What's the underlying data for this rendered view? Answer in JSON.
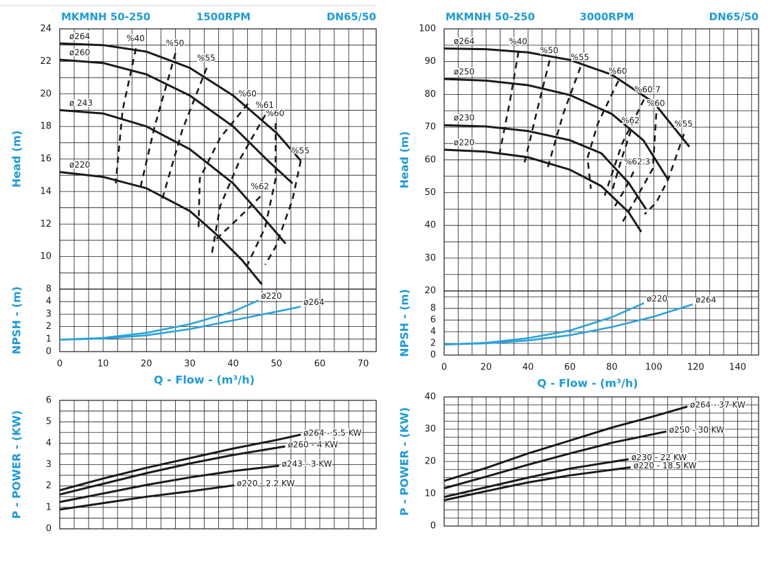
{
  "chart_data": [
    {
      "type": "line",
      "header": [
        "MKMNH 50-250",
        "1500RPM",
        "DN65/50"
      ],
      "ylabel": "Head (m)",
      "xlim": [
        0,
        73
      ],
      "ylim": [
        8,
        24
      ],
      "yticks": [
        8,
        10,
        12,
        14,
        16,
        18,
        20,
        22,
        24
      ],
      "grid": true,
      "minor_grid": [
        3,
        2
      ],
      "series": [
        {
          "name": "ø264",
          "color": "#1a1a1a",
          "x": [
            0,
            10,
            20,
            30,
            40,
            50,
            55.6
          ],
          "values": [
            23.1,
            23.0,
            22.6,
            21.6,
            19.9,
            17.6,
            15.9
          ]
        },
        {
          "name": "ø260",
          "color": "#1a1a1a",
          "x": [
            0,
            10,
            20,
            30,
            40,
            48,
            53.7
          ],
          "values": [
            22.1,
            21.9,
            21.2,
            19.9,
            18.0,
            15.9,
            14.5
          ]
        },
        {
          "name": "ø 243",
          "color": "#1a1a1a",
          "x": [
            0,
            10,
            20,
            30,
            40,
            46,
            52.1
          ],
          "values": [
            19.0,
            18.8,
            18.0,
            16.6,
            14.5,
            12.7,
            10.8
          ]
        },
        {
          "name": "ø220",
          "color": "#1a1a1a",
          "x": [
            0,
            10,
            20,
            30,
            36,
            42,
            46.6
          ],
          "values": [
            15.2,
            14.9,
            14.2,
            12.8,
            11.4,
            9.8,
            8.3
          ]
        },
        {
          "name": "%40",
          "color": "#1a1a1a",
          "dash": true,
          "x": [
            17.6,
            14.5,
            12.9
          ],
          "values": [
            22.8,
            19.0,
            14.5
          ]
        },
        {
          "name": "%50",
          "color": "#1a1a1a",
          "dash": true,
          "x": [
            26.7,
            21.9,
            18.4
          ],
          "values": [
            22.5,
            18.0,
            14.0
          ]
        },
        {
          "name": "%55",
          "color": "#1a1a1a",
          "dash": true,
          "x": [
            33.9,
            28.3,
            23.5
          ],
          "values": [
            21.6,
            17.8,
            13.4
          ]
        },
        {
          "name": "%60",
          "color": "#1a1a1a",
          "dash": true,
          "x": [
            43.4,
            37.0,
            32.3,
            32.0
          ],
          "values": [
            19.4,
            17.3,
            14.8,
            11.6
          ]
        },
        {
          "name": "%61",
          "color": "#1a1a1a",
          "dash": true,
          "x": [
            47.4,
            41.8,
            37.0,
            35.1
          ],
          "values": [
            18.7,
            16.1,
            13.1,
            10.2
          ]
        },
        {
          "name": "%60",
          "color": "#1a1a1a",
          "dash": true,
          "x": [
            49.8,
            49.8,
            47.4,
            42.6
          ],
          "values": [
            18.2,
            14.8,
            11.8,
            9.1
          ]
        },
        {
          "name": "%55",
          "color": "#1a1a1a",
          "dash": true,
          "x": [
            55.6,
            53.7,
            49.8,
            47.4
          ],
          "values": [
            15.9,
            13.5,
            10.6,
            9.5
          ]
        },
        {
          "name": "%62",
          "color": "#1a1a1a",
          "dash": true,
          "x": [
            46.3,
            41.0,
            35.8
          ],
          "values": [
            13.7,
            12.3,
            11.0
          ]
        }
      ]
    },
    {
      "type": "line",
      "ylabel": "NPSH - (m)",
      "xlabel": "Q - Flow - (m³/h)",
      "xlim": [
        0,
        73
      ],
      "xticks": [
        0,
        10,
        20,
        30,
        40,
        50,
        60,
        70
      ],
      "ylim": [
        0,
        5
      ],
      "yticks": [
        0,
        1,
        2,
        3,
        4
      ],
      "grid": true,
      "minor_grid": [
        3,
        1
      ],
      "series": [
        {
          "name": "ø220",
          "color": "#29a3dc",
          "x": [
            0,
            10,
            20,
            30,
            40,
            45.8
          ],
          "values": [
            0.95,
            1.1,
            1.5,
            2.2,
            3.2,
            4.1
          ]
        },
        {
          "name": "ø264",
          "color": "#29a3dc",
          "x": [
            0,
            10,
            20,
            30,
            40,
            50,
            55.6
          ],
          "values": [
            0.95,
            1.05,
            1.3,
            1.8,
            2.5,
            3.2,
            3.6
          ]
        }
      ]
    },
    {
      "type": "line",
      "ylabel": "P - POWER - (KW)",
      "xlim": [
        0,
        73
      ],
      "ylim": [
        0,
        6
      ],
      "yticks": [
        0,
        1,
        2,
        3,
        4,
        5,
        6
      ],
      "grid": true,
      "minor_grid": [
        3,
        2
      ],
      "series": [
        {
          "name": "ø264 - 5.5 KW",
          "color": "#1a1a1a",
          "x": [
            0,
            10,
            20,
            30,
            40,
            50,
            55.6
          ],
          "values": [
            1.8,
            2.35,
            2.85,
            3.3,
            3.75,
            4.15,
            4.4
          ]
        },
        {
          "name": "ø260 - 4 KW",
          "color": "#1a1a1a",
          "x": [
            0,
            10,
            20,
            30,
            40,
            52
          ],
          "values": [
            1.6,
            2.1,
            2.6,
            3.05,
            3.45,
            3.85
          ]
        },
        {
          "name": "ø243 - 3 KW",
          "color": "#1a1a1a",
          "x": [
            0,
            10,
            20,
            30,
            40,
            50.6
          ],
          "values": [
            1.25,
            1.65,
            2.05,
            2.4,
            2.7,
            2.95
          ]
        },
        {
          "name": "ø220 - 2.2 KW",
          "color": "#1a1a1a",
          "x": [
            0,
            10,
            20,
            30,
            40.2
          ],
          "values": [
            0.9,
            1.2,
            1.5,
            1.75,
            2.03
          ]
        }
      ]
    },
    {
      "type": "line",
      "header": [
        "MKMNH 50-250",
        "3000RPM",
        "DN65/50"
      ],
      "ylabel": "Head (m)",
      "xlim": [
        0,
        150
      ],
      "ylim": [
        20,
        100
      ],
      "yticks": [
        20,
        30,
        40,
        50,
        60,
        70,
        80,
        90,
        100
      ],
      "grid": true,
      "minor_grid": [
        3,
        2
      ],
      "series": [
        {
          "name": "ø264",
          "color": "#1a1a1a",
          "x": [
            0,
            20,
            40,
            60,
            80,
            100,
            117
          ],
          "values": [
            94,
            93.8,
            92.8,
            90.5,
            86,
            77.5,
            64
          ]
        },
        {
          "name": "ø250",
          "color": "#1a1a1a",
          "x": [
            0,
            20,
            40,
            60,
            80,
            95,
            106.8
          ],
          "values": [
            84.7,
            84.2,
            82.8,
            79.8,
            74,
            66,
            54
          ]
        },
        {
          "name": "ø230",
          "color": "#1a1a1a",
          "x": [
            0,
            20,
            40,
            60,
            75,
            88,
            96.3
          ],
          "values": [
            70.6,
            70.2,
            68.8,
            66,
            62,
            53,
            45
          ]
        },
        {
          "name": "ø220",
          "color": "#1a1a1a",
          "x": [
            0,
            20,
            40,
            60,
            75,
            88,
            94
          ],
          "values": [
            63.1,
            62.5,
            60.8,
            57,
            52,
            44,
            38
          ]
        },
        {
          "name": "%40",
          "color": "#1a1a1a",
          "dash": true,
          "x": [
            35.5,
            31.2,
            26.3
          ],
          "values": [
            93.1,
            77.4,
            61.6
          ]
        },
        {
          "name": "%50",
          "color": "#1a1a1a",
          "dash": true,
          "x": [
            50.3,
            44.4,
            38.1
          ],
          "values": [
            90.4,
            75.3,
            58.5
          ]
        },
        {
          "name": "%55",
          "color": "#1a1a1a",
          "dash": true,
          "x": [
            65,
            56.9,
            49.3
          ],
          "values": [
            88.3,
            74.2,
            57.4
          ]
        },
        {
          "name": "%60",
          "color": "#1a1a1a",
          "dash": true,
          "x": [
            83.1,
            73.3,
            68.4,
            70
          ],
          "values": [
            84.1,
            71.1,
            60.6,
            51.2
          ]
        },
        {
          "name": "%60.7",
          "color": "#1a1a1a",
          "dash": true,
          "x": [
            95.3,
            84.8,
            76.6
          ],
          "values": [
            78.4,
            64.8,
            49.1
          ]
        },
        {
          "name": "%60",
          "color": "#1a1a1a",
          "dash": true,
          "x": [
            101.2,
            99.6,
            91.4,
            84.8
          ],
          "values": [
            74.2,
            57.4,
            48.0,
            40.7
          ]
        },
        {
          "name": "%55",
          "color": "#1a1a1a",
          "dash": true,
          "x": [
            114.4,
            106.8,
            101.2,
            95.6
          ],
          "values": [
            67.9,
            53.9,
            47.0,
            43.4
          ]
        },
        {
          "name": "%62",
          "color": "#1a1a1a",
          "dash": true,
          "x": [
            89.1,
            84.8,
            79.9
          ],
          "values": [
            69,
            60.6,
            50.1
          ]
        },
        {
          "name": "%62.3",
          "color": "#1a1a1a",
          "dash": true,
          "x": [
            90.4,
            86.4,
            81.5
          ],
          "values": [
            56.4,
            51.2,
            45.9
          ]
        }
      ]
    },
    {
      "type": "line",
      "ylabel": "NPSH - (m)",
      "xlabel": "Q - Flow - (m³/h)",
      "xlim": [
        0,
        150
      ],
      "xticks": [
        0,
        20,
        40,
        60,
        80,
        100,
        120,
        140
      ],
      "ylim": [
        0,
        11
      ],
      "yticks": [
        0,
        2,
        4,
        6,
        8
      ],
      "grid": true,
      "minor_grid": [
        3,
        1
      ],
      "series": [
        {
          "name": "ø220",
          "color": "#29a3dc",
          "x": [
            0,
            20,
            40,
            60,
            80,
            95.3
          ],
          "values": [
            1.8,
            2.1,
            2.9,
            4.2,
            6.5,
            8.9
          ]
        },
        {
          "name": "ø264",
          "color": "#29a3dc",
          "x": [
            0,
            20,
            40,
            60,
            80,
            100,
            118.6
          ],
          "values": [
            1.8,
            2.0,
            2.5,
            3.4,
            4.8,
            6.6,
            8.7
          ]
        }
      ]
    },
    {
      "type": "line",
      "ylabel": "P - POWER - (KW)",
      "xlim": [
        0,
        150
      ],
      "ylim": [
        0,
        40
      ],
      "yticks": [
        0,
        10,
        20,
        30,
        40
      ],
      "grid": true,
      "minor_grid": [
        3,
        4
      ],
      "series": [
        {
          "name": "ø264 - 37 KW",
          "color": "#1a1a1a",
          "x": [
            0,
            20,
            40,
            60,
            80,
            100,
            116
          ],
          "values": [
            14,
            18,
            22.5,
            26.5,
            30.5,
            34,
            37
          ]
        },
        {
          "name": "ø250 - 30 KW",
          "color": "#1a1a1a",
          "x": [
            0,
            20,
            40,
            60,
            80,
            106
          ],
          "values": [
            11.7,
            15.3,
            19,
            22.5,
            25.8,
            29.3
          ]
        },
        {
          "name": "ø230 - 22 KW",
          "color": "#1a1a1a",
          "x": [
            0,
            20,
            40,
            60,
            88
          ],
          "values": [
            9,
            12,
            15,
            17.8,
            20.7
          ]
        },
        {
          "name": "ø220 - 18.5 KW",
          "color": "#1a1a1a",
          "x": [
            0,
            20,
            40,
            60,
            89
          ],
          "values": [
            8,
            10.8,
            13.5,
            15.7,
            18.2
          ]
        }
      ]
    }
  ]
}
